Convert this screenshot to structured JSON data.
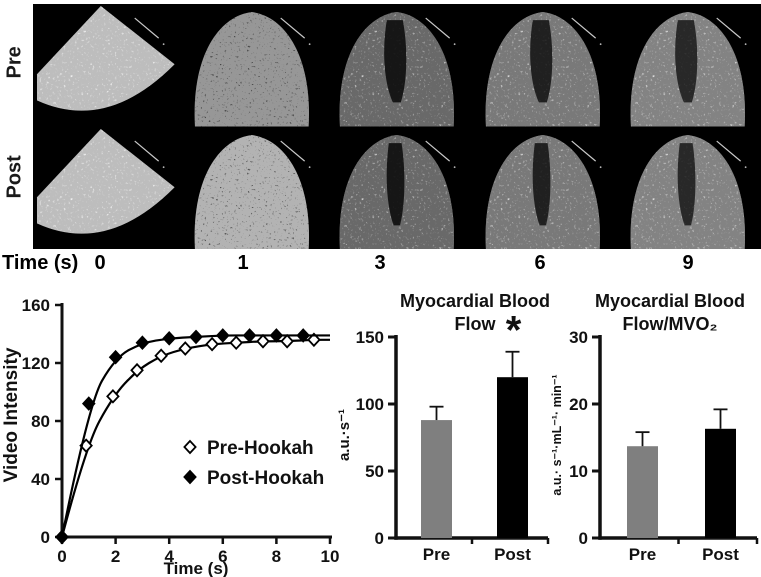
{
  "montage": {
    "row_labels": [
      "Pre",
      "Post"
    ],
    "time_axis_label": "Time (s)",
    "time_labels": [
      "0",
      "1",
      "3",
      "6",
      "9"
    ],
    "frames": [
      {
        "row": "Pre",
        "time": "0"
      },
      {
        "row": "Pre",
        "time": "1"
      },
      {
        "row": "Pre",
        "time": "3"
      },
      {
        "row": "Pre",
        "time": "6"
      },
      {
        "row": "Pre",
        "time": "9"
      },
      {
        "row": "Post",
        "time": "0"
      },
      {
        "row": "Post",
        "time": "1"
      },
      {
        "row": "Post",
        "time": "3"
      },
      {
        "row": "Post",
        "time": "6"
      },
      {
        "row": "Post",
        "time": "9"
      }
    ]
  },
  "colors": {
    "pre_bar": "#7f7f7f",
    "post_bar": "#000000",
    "line": "#000000",
    "text": "#111111"
  },
  "chart_data": [
    {
      "type": "line",
      "title": "",
      "xlabel": "Time (s)",
      "ylabel": "Video Intensity",
      "xlim": [
        0,
        10
      ],
      "ylim": [
        0,
        160
      ],
      "xticks": [
        0,
        2,
        4,
        6,
        8,
        10
      ],
      "yticks": [
        0,
        40,
        80,
        120,
        160
      ],
      "grid": false,
      "legend_position": "inside-right",
      "series": [
        {
          "name": "Pre-Hookah",
          "marker": "open-diamond",
          "x": [
            0,
            0.9,
            1.9,
            2.8,
            3.7,
            4.6,
            5.6,
            6.5,
            7.5,
            8.4,
            9.4
          ],
          "y": [
            0,
            63,
            97,
            115,
            125,
            130,
            133,
            134,
            135,
            135,
            136
          ]
        },
        {
          "name": "Post-Hookah",
          "marker": "filled-diamond",
          "x": [
            0,
            1,
            2,
            3,
            4,
            5,
            6,
            7,
            8,
            9
          ],
          "y": [
            0,
            92,
            124,
            134,
            137,
            138,
            139,
            139,
            139,
            139
          ]
        }
      ]
    },
    {
      "type": "bar",
      "title_lines": [
        "Myocardial Blood",
        "Flow"
      ],
      "ylabel": "a.u.·s⁻¹",
      "categories": [
        "Pre",
        "Post"
      ],
      "values": [
        88,
        120
      ],
      "errors": [
        10,
        19
      ],
      "ylim": [
        0,
        150
      ],
      "yticks": [
        0,
        50,
        100,
        150
      ],
      "bar_colors": [
        "#7f7f7f",
        "#000000"
      ],
      "annotations": [
        {
          "text": "*",
          "category": "Post"
        }
      ]
    },
    {
      "type": "bar",
      "title_lines": [
        "Myocardial Blood",
        "Flow/MVO₂"
      ],
      "ylabel": "a.u.· s⁻¹·mL⁻¹· min⁻¹",
      "categories": [
        "Pre",
        "Post"
      ],
      "values": [
        13.7,
        16.3
      ],
      "errors": [
        2.1,
        2.9
      ],
      "ylim": [
        0,
        30
      ],
      "yticks": [
        0,
        10,
        20,
        30
      ],
      "bar_colors": [
        "#7f7f7f",
        "#000000"
      ],
      "annotations": []
    }
  ]
}
